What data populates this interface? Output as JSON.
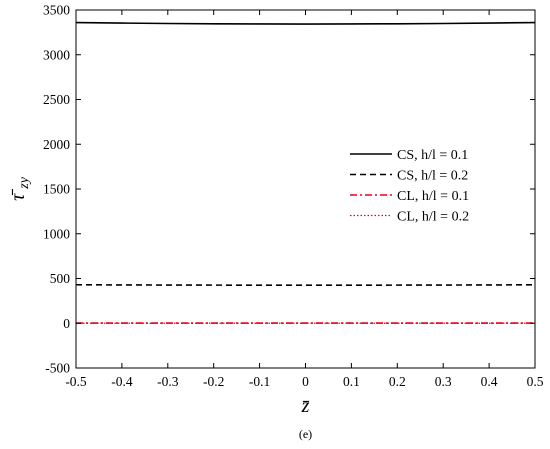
{
  "chart_data": {
    "type": "line",
    "xlabel": "z̄",
    "ylabel_main": "τ̄",
    "ylabel_sub": "zy",
    "xlim": [
      -0.5,
      0.5
    ],
    "ylim": [
      -500,
      3500
    ],
    "xticks": [
      -0.5,
      -0.4,
      -0.3,
      -0.2,
      -0.1,
      0,
      0.1,
      0.2,
      0.3,
      0.4,
      0.5
    ],
    "xtick_labels": [
      "-0.5",
      "-0.4",
      "-0.3",
      "-0.2",
      "-0.1",
      "0",
      "0.1",
      "0.2",
      "0.3",
      "0.4",
      "0.5"
    ],
    "yticks": [
      -500,
      0,
      500,
      1000,
      1500,
      2000,
      2500,
      3000,
      3500
    ],
    "ytick_labels": [
      "-500",
      "0",
      "500",
      "1000",
      "1500",
      "2000",
      "2500",
      "3000",
      "3500"
    ],
    "grid": false,
    "legend_position": "right",
    "series": [
      {
        "name": "CS, h/l = 0.1",
        "color": "#000000",
        "dash": "solid",
        "x": [
          -0.5,
          -0.4,
          -0.3,
          -0.2,
          -0.1,
          0,
          0.1,
          0.2,
          0.3,
          0.4,
          0.5
        ],
        "y": [
          3360,
          3354,
          3349,
          3346,
          3344,
          3343,
          3344,
          3346,
          3349,
          3354,
          3360
        ]
      },
      {
        "name": "CS, h/l = 0.2",
        "color": "#000000",
        "dash": "dashed",
        "x": [
          -0.5,
          -0.4,
          -0.3,
          -0.2,
          -0.1,
          0,
          0.1,
          0.2,
          0.3,
          0.4,
          0.5
        ],
        "y": [
          430,
          428,
          427,
          426,
          425,
          425,
          425,
          426,
          427,
          428,
          430
        ]
      },
      {
        "name": "CL, h/l = 0.1",
        "color": "#e8001c",
        "dash": "dashdot",
        "x": [
          -0.5,
          -0.4,
          -0.3,
          -0.2,
          -0.1,
          0,
          0.1,
          0.2,
          0.3,
          0.4,
          0.5
        ],
        "y": [
          2,
          2,
          2,
          2,
          2,
          2,
          2,
          2,
          2,
          2,
          2
        ]
      },
      {
        "name": "CL, h/l = 0.2",
        "color": "#e8001c",
        "dash": "dotted",
        "x": [
          -0.5,
          -0.4,
          -0.3,
          -0.2,
          -0.1,
          0,
          0.1,
          0.2,
          0.3,
          0.4,
          0.5
        ],
        "y": [
          0,
          0,
          0,
          0,
          0,
          0,
          0,
          0,
          0,
          0,
          0
        ]
      }
    ]
  },
  "caption": "(e)"
}
